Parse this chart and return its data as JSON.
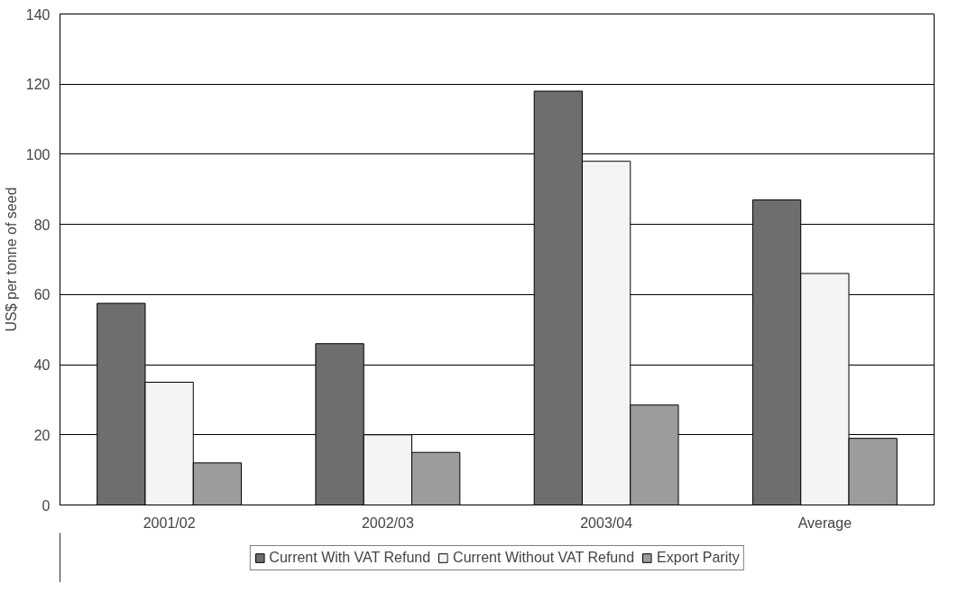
{
  "chart_data": {
    "type": "bar",
    "ylabel": "US$ per tonne of seed",
    "categories": [
      "2001/02",
      "2002/03",
      "2003/04",
      "Average"
    ],
    "series": [
      {
        "name": "Current With VAT Refund",
        "color": "#6e6e6e",
        "values": [
          57.5,
          46,
          118,
          87
        ]
      },
      {
        "name": "Current Without VAT Refund",
        "color": "#f4f4f4",
        "values": [
          35,
          20,
          98,
          66
        ]
      },
      {
        "name": "Export Parity",
        "color": "#9c9c9c",
        "values": [
          12,
          15,
          28.5,
          19
        ]
      }
    ],
    "ylim": [
      0,
      140
    ],
    "yticks": [
      0,
      20,
      40,
      60,
      80,
      100,
      120,
      140
    ],
    "grid": "y",
    "legend": "bottom"
  }
}
